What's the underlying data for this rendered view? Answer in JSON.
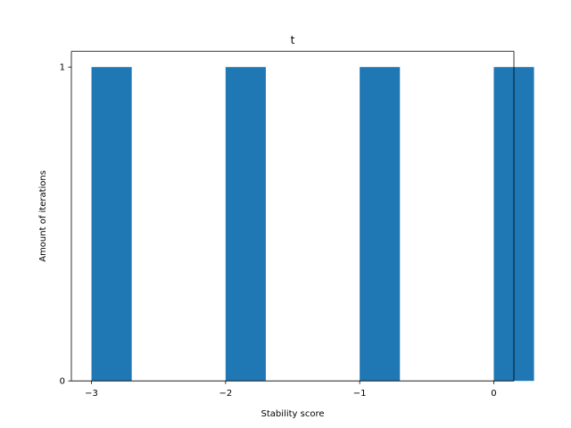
{
  "chart_data": {
    "type": "bar",
    "title": "t",
    "xlabel": "Stability score",
    "ylabel": "Amount of iterations",
    "bars": [
      {
        "x_start": -3.0,
        "x_end": -2.7,
        "value": 1
      },
      {
        "x_start": -2.0,
        "x_end": -1.7,
        "value": 1
      },
      {
        "x_start": -1.0,
        "x_end": -0.7,
        "value": 1
      },
      {
        "x_start": 0.0,
        "x_end": 0.3,
        "value": 1
      }
    ],
    "xlim": [
      -3.15,
      0.15
    ],
    "ylim": [
      0,
      1.05
    ],
    "x_ticks": [
      -3,
      -2,
      -1,
      0
    ],
    "x_tick_labels": [
      "−3",
      "−2",
      "−1",
      "0"
    ],
    "y_ticks": [
      0,
      1
    ],
    "y_tick_labels": [
      "0",
      "1"
    ],
    "bar_color": "#1f77b4",
    "grid": false,
    "legend": "none"
  }
}
